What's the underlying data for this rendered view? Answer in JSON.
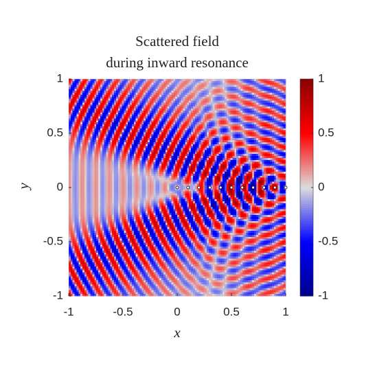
{
  "chart_data": {
    "type": "heatmap",
    "title": [
      "Scattered field",
      "during inward resonance"
    ],
    "xlabel": "x",
    "ylabel": "y",
    "xlim": [
      -1,
      1
    ],
    "ylim": [
      -1,
      1
    ],
    "xticks": [
      -1,
      -0.5,
      0,
      0.5,
      1
    ],
    "yticks": [
      -1,
      -0.5,
      0,
      0.5,
      1
    ],
    "clim": [
      -1,
      1
    ],
    "cticks": [
      -1,
      -0.5,
      0,
      0.5,
      1
    ],
    "colormap": [
      "#00008b",
      "#0000ff",
      "#dcdcdc",
      "#ff0000",
      "#8b0000"
    ],
    "points": {
      "x": [
        0,
        0.1,
        0.2,
        0.3,
        0.4,
        0.5,
        0.6,
        0.7,
        0.8,
        0.9,
        1
      ],
      "y": [
        0,
        0,
        0,
        0,
        0,
        0,
        0,
        0,
        0,
        0,
        0
      ]
    }
  }
}
